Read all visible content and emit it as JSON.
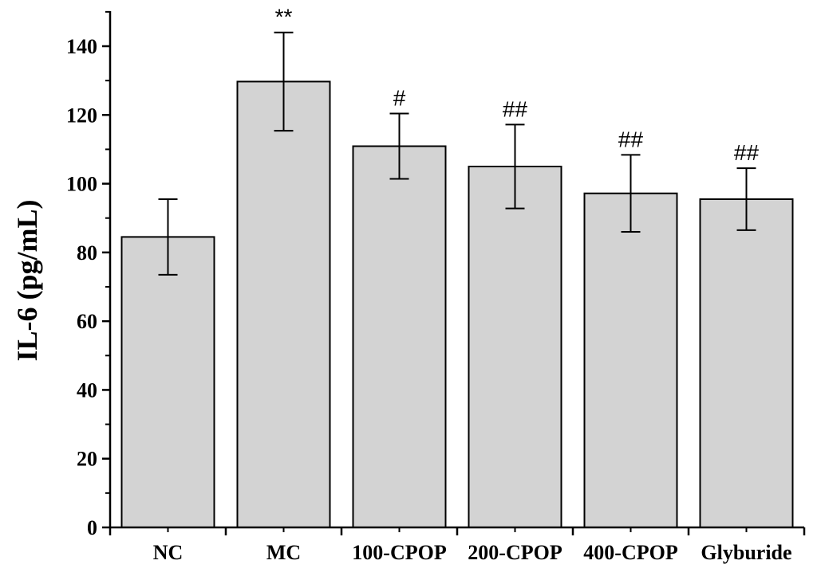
{
  "chart_data": {
    "type": "bar",
    "title": "",
    "xlabel": "",
    "ylabel": "IL-6 (pg/mL)",
    "ylim": [
      0,
      150
    ],
    "yticks": [
      0,
      20,
      40,
      60,
      80,
      100,
      120,
      140
    ],
    "grid": false,
    "categories": [
      "NC",
      "MC",
      "100-CPOP",
      "200-CPOP",
      "400-CPOP",
      "Glyburide"
    ],
    "values": [
      84.5,
      129.7,
      110.9,
      105.0,
      97.2,
      95.5
    ],
    "errors": [
      11,
      14.3,
      9.5,
      12.2,
      11.2,
      9.0
    ],
    "annotations": [
      "",
      "**",
      "#",
      "##",
      "##",
      "##"
    ],
    "colors": {
      "bar_fill": "#d3d3d3",
      "bar_stroke": "#000000",
      "axis": "#000000"
    }
  }
}
